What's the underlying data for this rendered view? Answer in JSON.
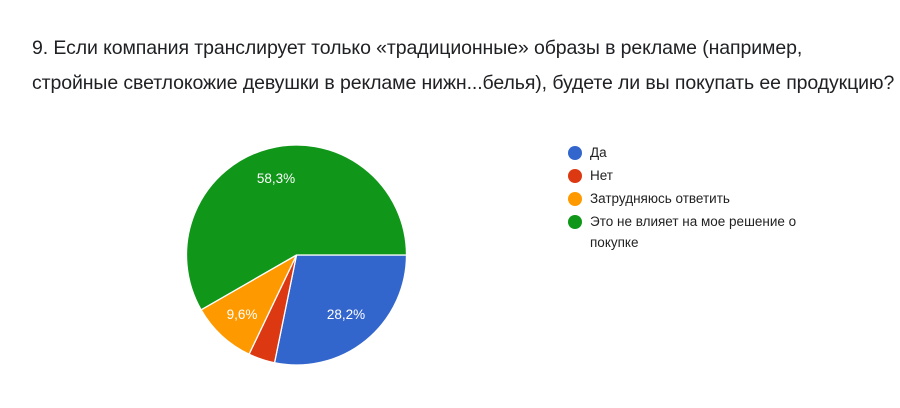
{
  "question": {
    "line1": "9. Если компания транслирует только «традиционные» образы в рекламе (например,",
    "line2": "стройные светлокожие девушки в рекламе нижн...белья), будете ли вы покупать ее продукцию?"
  },
  "legend": [
    {
      "label": "Да",
      "color": "#3366cc"
    },
    {
      "label": "Нет",
      "color": "#dc3912"
    },
    {
      "label": "Затрудняюсь ответить",
      "color": "#ff9900"
    },
    {
      "label": "Это не влияет на мое решение о покупке",
      "color": "#109618"
    }
  ],
  "slice_labels": {
    "da": "28,2%",
    "zatrud": "9,6%",
    "ne_vliyaet": "58,3%"
  },
  "chart_data": {
    "type": "pie",
    "title": "9. Если компания транслирует только «традиционные» образы в рекламе (например, стройные светлокожие девушки в рекламе нижн...белья), будете ли вы покупать ее продукцию?",
    "categories": [
      "Да",
      "Нет",
      "Затрудняюсь ответить",
      "Это не влияет на мое решение о покупке"
    ],
    "values": [
      28.2,
      3.9,
      9.6,
      58.3
    ],
    "colors": [
      "#3366cc",
      "#dc3912",
      "#ff9900",
      "#109618"
    ],
    "data_labels": [
      "28,2%",
      "",
      "9,6%",
      "58,3%"
    ],
    "start_angle": "3 o'clock, clockwise",
    "legend_position": "right"
  }
}
